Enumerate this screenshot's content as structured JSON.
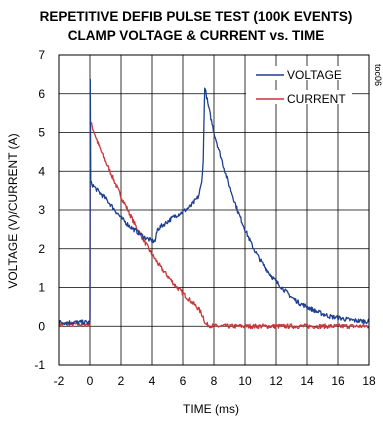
{
  "chart_data": {
    "type": "line",
    "title_line1": "REPETITIVE DEFIB PULSE TEST (100K EVENTS)",
    "title_line2": "CLAMP VOLTAGE & CURRENT vs. TIME",
    "xlabel": "TIME (ms)",
    "ylabel": "VOLTAGE (V)/CURRENT (A)",
    "figure_code": "toc06",
    "xlim": [
      -2,
      18
    ],
    "ylim": [
      -1,
      7
    ],
    "xticks": [
      -2,
      0,
      2,
      4,
      6,
      8,
      10,
      12,
      14,
      16,
      18
    ],
    "yticks": [
      -1,
      0,
      1,
      2,
      3,
      4,
      5,
      6,
      7
    ],
    "grid": true,
    "legend_position": "top-right",
    "series": [
      {
        "name": "VOLTAGE",
        "color": "#1f3f8f",
        "points": [
          [
            -2.0,
            0.1
          ],
          [
            -1.0,
            0.1
          ],
          [
            0.0,
            0.1
          ],
          [
            0.02,
            6.35
          ],
          [
            0.05,
            3.7
          ],
          [
            0.5,
            3.5
          ],
          [
            1.0,
            3.3
          ],
          [
            1.5,
            3.05
          ],
          [
            2.0,
            2.8
          ],
          [
            2.5,
            2.6
          ],
          [
            3.0,
            2.45
          ],
          [
            3.5,
            2.3
          ],
          [
            4.0,
            2.2
          ],
          [
            4.2,
            2.2
          ],
          [
            4.35,
            2.5
          ],
          [
            4.5,
            2.55
          ],
          [
            5.0,
            2.7
          ],
          [
            5.5,
            2.85
          ],
          [
            6.0,
            2.95
          ],
          [
            6.5,
            3.1
          ],
          [
            7.0,
            3.35
          ],
          [
            7.2,
            3.7
          ],
          [
            7.3,
            4.3
          ],
          [
            7.4,
            6.2
          ],
          [
            7.6,
            5.75
          ],
          [
            8.0,
            5.0
          ],
          [
            8.5,
            4.3
          ],
          [
            9.0,
            3.6
          ],
          [
            9.5,
            3.0
          ],
          [
            10.0,
            2.5
          ],
          [
            10.5,
            2.05
          ],
          [
            11.0,
            1.7
          ],
          [
            11.5,
            1.4
          ],
          [
            12.0,
            1.15
          ],
          [
            12.5,
            0.95
          ],
          [
            13.0,
            0.75
          ],
          [
            13.5,
            0.6
          ],
          [
            14.0,
            0.5
          ],
          [
            14.5,
            0.4
          ],
          [
            15.0,
            0.32
          ],
          [
            15.5,
            0.25
          ],
          [
            16.0,
            0.22
          ],
          [
            16.5,
            0.18
          ],
          [
            17.0,
            0.15
          ],
          [
            18.0,
            0.12
          ]
        ]
      },
      {
        "name": "CURRENT",
        "color": "#c8373a",
        "points": [
          [
            -2.0,
            0.05
          ],
          [
            -1.0,
            0.05
          ],
          [
            0.0,
            0.05
          ],
          [
            0.02,
            5.25
          ],
          [
            0.1,
            5.2
          ],
          [
            0.5,
            4.75
          ],
          [
            1.0,
            4.25
          ],
          [
            1.5,
            3.8
          ],
          [
            2.0,
            3.35
          ],
          [
            2.5,
            2.95
          ],
          [
            3.0,
            2.55
          ],
          [
            3.5,
            2.2
          ],
          [
            4.0,
            1.85
          ],
          [
            4.5,
            1.55
          ],
          [
            5.0,
            1.3
          ],
          [
            5.5,
            1.05
          ],
          [
            6.0,
            0.85
          ],
          [
            6.5,
            0.65
          ],
          [
            7.0,
            0.45
          ],
          [
            7.3,
            0.25
          ],
          [
            7.45,
            0.05
          ],
          [
            8.0,
            0.0
          ],
          [
            10.0,
            0.0
          ],
          [
            12.0,
            0.0
          ],
          [
            14.0,
            0.0
          ],
          [
            16.0,
            0.0
          ],
          [
            18.0,
            0.0
          ]
        ]
      }
    ]
  }
}
